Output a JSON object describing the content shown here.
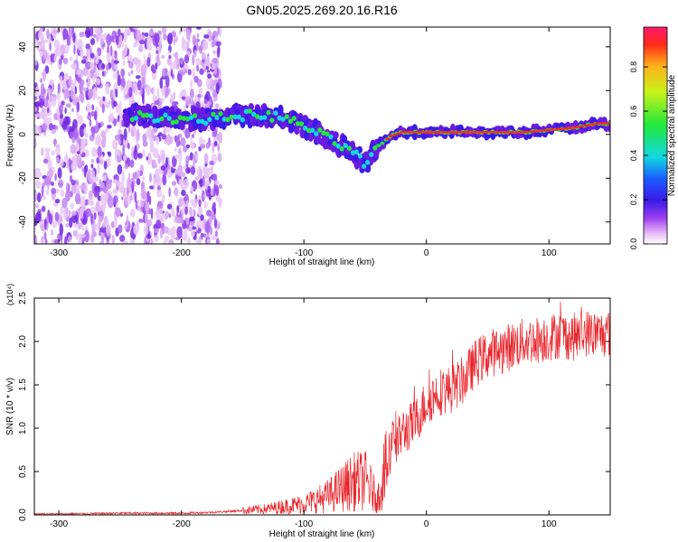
{
  "title": "GN05.2025.269.20.16.R16",
  "colors": {
    "snr_line": "#e8262c",
    "spectrum_band": "#6a1de0",
    "ridge_peak": "#ff2a1a"
  },
  "chart_data": [
    {
      "type": "heatmap",
      "xlabel": "Height of straight line (km)",
      "ylabel": "Frequency (Hz)",
      "xlim": [
        -320,
        150
      ],
      "ylim": [
        -50,
        49
      ],
      "xticks": [
        -300,
        -200,
        -100,
        0,
        100
      ],
      "yticks": [
        -40,
        -20,
        0,
        20,
        40
      ],
      "colorbar": {
        "label": "Normalized spectral amplitude",
        "range": [
          0.0,
          0.98
        ],
        "ticks": [
          0.0,
          0.2,
          0.4,
          0.6,
          0.8
        ]
      },
      "ridge": {
        "x": [
          -245,
          -220,
          -200,
          -180,
          -160,
          -140,
          -120,
          -100,
          -80,
          -60,
          -50,
          -40,
          -30,
          -20,
          0,
          20,
          40,
          60,
          80,
          100,
          120,
          140,
          150
        ],
        "y": [
          9,
          8,
          7,
          7,
          8,
          9,
          8,
          4,
          -2,
          -8,
          -14,
          -6,
          -1,
          1,
          1,
          1,
          1,
          1,
          1,
          2,
          3,
          5,
          5
        ]
      }
    },
    {
      "type": "line",
      "xlabel": "Height of straight line (km)",
      "ylabel": "SNR (10 * v/v)",
      "y_multiplier": "(x10⁴)",
      "xlim": [
        -320,
        150
      ],
      "ylim": [
        0,
        2.5
      ],
      "xticks": [
        -300,
        -200,
        -100,
        0,
        100
      ],
      "yticks": [
        0.0,
        0.5,
        1.0,
        1.5,
        2.0,
        2.5
      ],
      "series": [
        {
          "x": [
            -320,
            -300,
            -250,
            -200,
            -175,
            -150,
            -130,
            -110,
            -100,
            -90,
            -80,
            -70,
            -60,
            -50,
            -45,
            -40,
            -35,
            -30,
            -27,
            -25,
            -22,
            -20,
            -10,
            0,
            10,
            20,
            30,
            40,
            50,
            60,
            70,
            80,
            90,
            100,
            110,
            120,
            130,
            140,
            150
          ],
          "values": [
            0.01,
            0.01,
            0.02,
            0.02,
            0.03,
            0.05,
            0.07,
            0.11,
            0.13,
            0.17,
            0.22,
            0.3,
            0.38,
            0.4,
            0.3,
            0.18,
            0.45,
            0.6,
            1.1,
            0.75,
            0.9,
            0.95,
            1.05,
            1.3,
            1.42,
            1.45,
            1.55,
            1.75,
            1.85,
            1.9,
            1.95,
            2.0,
            2.02,
            2.05,
            2.08,
            2.05,
            2.1,
            2.08,
            2.1
          ]
        }
      ]
    }
  ]
}
